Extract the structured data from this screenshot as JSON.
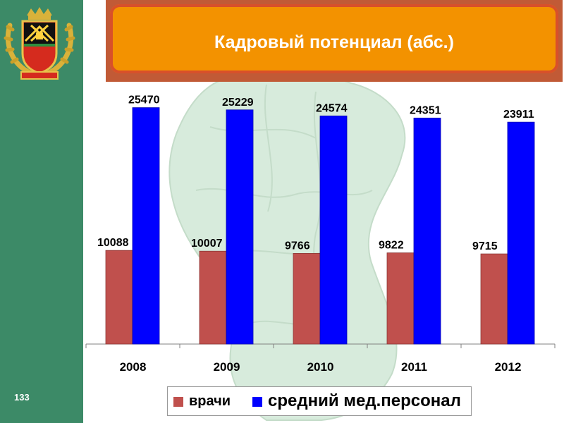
{
  "page": {
    "title": "Кадровый потенциал (абс.)",
    "page_number": "133"
  },
  "colors": {
    "sidebar": "#3c8a67",
    "title_fill": "#f39200",
    "title_frame": "#c15a36",
    "series_doctors": "#c0504d",
    "series_nurses": "#0000ff",
    "map": "#d7ebdc"
  },
  "emblem": {
    "icon": "kemerovo-coat-of-arms-icon"
  },
  "chart_data": {
    "type": "bar",
    "title": "",
    "xlabel": "",
    "ylabel": "",
    "categories": [
      "2008",
      "2009",
      "2010",
      "2011",
      "2012"
    ],
    "series": [
      {
        "name": "врачи",
        "values": [
          10088,
          10007,
          9766,
          9822,
          9715
        ],
        "color": "#c0504d"
      },
      {
        "name": "средний мед.персонал",
        "values": [
          25470,
          25229,
          24574,
          24351,
          23911
        ],
        "color": "#0000ff"
      }
    ],
    "ylim": [
      0,
      30000
    ],
    "grid": false,
    "y_axis_visible": false,
    "data_labels": true,
    "legend_position": "bottom"
  }
}
